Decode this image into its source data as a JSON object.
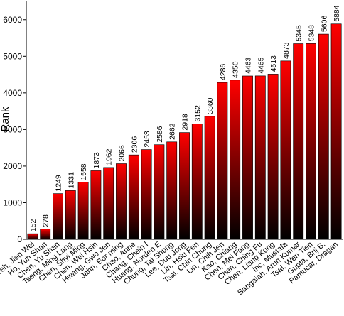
{
  "chart_data": {
    "type": "bar",
    "y_label": "Rank",
    "categories": [
      "Yeh, Jien Wei",
      "Ho, Yuh Shan",
      "Chen, Yu Shan",
      "Tseng, Ming Lang",
      "Chen, Shyi Ming",
      "Chen, Wei Hsin",
      "Hwang, Gwo Jen",
      "Jahn, Bor ming",
      "Chao, Anne",
      "Chang, Chein I",
      "Huang, Norden E",
      "Chung, Tai Shung",
      "Lee, Duu Jong",
      "Lin, Hsiu Fen",
      "Tsai, Chin Chung",
      "Lin, Chih Jen",
      "Kao, Chiang",
      "Chen, Mei Fang",
      "Chen, Ching Fu",
      "Chen, Liang Kung",
      "Inc, Mustafa",
      "Sangaiah, Arun Kumar",
      "Tsai, Wen Tien",
      "Gupta, Brij B.",
      "Pamucar, Dragan"
    ],
    "values": [
      152,
      278,
      1249,
      1331,
      1558,
      1873,
      1962,
      2066,
      2306,
      2453,
      2586,
      2662,
      2918,
      3152,
      3360,
      4286,
      4350,
      4463,
      4465,
      4513,
      4873,
      5345,
      5348,
      5606,
      5884
    ],
    "gradient": [
      "#ff0000",
      "#000000"
    ],
    "ylim": [
      0,
      6500
    ],
    "yticks": [
      0,
      1000,
      2000,
      3000,
      4000,
      5000,
      6000
    ],
    "grid": false
  }
}
